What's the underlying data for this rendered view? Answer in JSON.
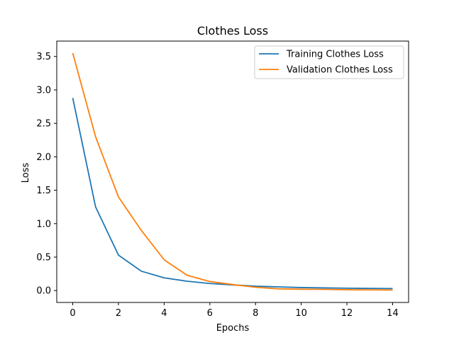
{
  "chart_data": {
    "type": "line",
    "title": "Clothes Loss",
    "xlabel": "Epochs",
    "ylabel": "Loss",
    "xlim": [
      -0.7,
      14.7
    ],
    "ylim": [
      -0.178,
      3.73
    ],
    "xticks": [
      0,
      2,
      4,
      6,
      8,
      10,
      12,
      14
    ],
    "yticks": [
      0.0,
      0.5,
      1.0,
      1.5,
      2.0,
      2.5,
      3.0,
      3.5
    ],
    "xtick_labels": [
      "0",
      "2",
      "4",
      "6",
      "8",
      "10",
      "12",
      "14"
    ],
    "ytick_labels": [
      "0.0",
      "0.5",
      "1.0",
      "1.5",
      "2.0",
      "2.5",
      "3.0",
      "3.5"
    ],
    "grid": false,
    "legend_position": "top-right",
    "x": [
      0,
      1,
      2,
      3,
      4,
      5,
      6,
      7,
      8,
      9,
      10,
      11,
      12,
      13,
      14
    ],
    "series": [
      {
        "name": "Training Clothes Loss",
        "color": "#1f77b4",
        "values": [
          2.88,
          1.25,
          0.53,
          0.29,
          0.19,
          0.14,
          0.105,
          0.085,
          0.065,
          0.055,
          0.045,
          0.04,
          0.035,
          0.032,
          0.03
        ]
      },
      {
        "name": "Validation Clothes Loss",
        "color": "#ff7f0e",
        "values": [
          3.55,
          2.3,
          1.4,
          0.9,
          0.46,
          0.23,
          0.135,
          0.09,
          0.05,
          0.025,
          0.02,
          0.018,
          0.012,
          0.01,
          0.008
        ]
      }
    ]
  }
}
